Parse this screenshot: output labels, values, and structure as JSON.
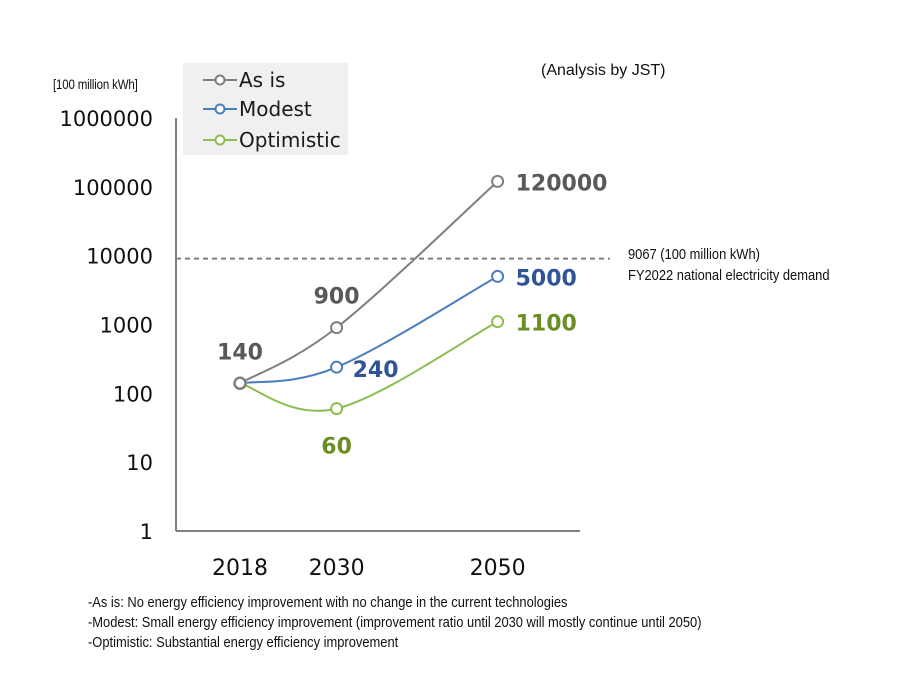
{
  "unit_label": "[100 million kWh]",
  "analysis_note": "(Analysis by JST)",
  "reference": {
    "value": 9067,
    "line1": "9067 (100 million kWh)",
    "line2": "FY2022 national electricity demand"
  },
  "footnotes": [
    "-As is: No energy efficiency improvement with no change in the current technologies",
    "-Modest: Small energy efficiency improvement (improvement ratio until 2030 will mostly continue until 2050)",
    "-Optimistic: Substantial energy efficiency improvement"
  ],
  "chart_data": {
    "type": "line",
    "title": "",
    "xlabel": "",
    "ylabel": "[100 million kWh]",
    "y_scale": "log",
    "ylim": [
      1,
      1000000
    ],
    "y_ticks": [
      1,
      10,
      100,
      1000,
      10000,
      100000,
      1000000
    ],
    "y_tick_labels": [
      "1",
      "10",
      "100",
      "1000",
      "10000",
      "100000",
      "1000000"
    ],
    "x": [
      2018,
      2030,
      2050
    ],
    "x_tick_labels": [
      "2018",
      "2030",
      "2050"
    ],
    "grid": false,
    "legend_position": "top-left",
    "series": [
      {
        "name": "As is",
        "color": "#7f7f7f",
        "label_color": "#595959",
        "values": [
          140,
          900,
          120000
        ],
        "labels": [
          "140",
          "900",
          "120000"
        ]
      },
      {
        "name": "Modest",
        "color": "#4a7ebf",
        "label_color": "#2f5597",
        "values": [
          140,
          240,
          5000
        ],
        "labels": [
          "",
          "240",
          "5000"
        ]
      },
      {
        "name": "Optimistic",
        "color": "#8cbd4e",
        "label_color": "#6b8e23",
        "values": [
          140,
          60,
          1100
        ],
        "labels": [
          "",
          "60",
          "1100"
        ]
      }
    ],
    "reference_line": {
      "value": 9067,
      "style": "dashed",
      "color": "#7f7f7f"
    }
  }
}
